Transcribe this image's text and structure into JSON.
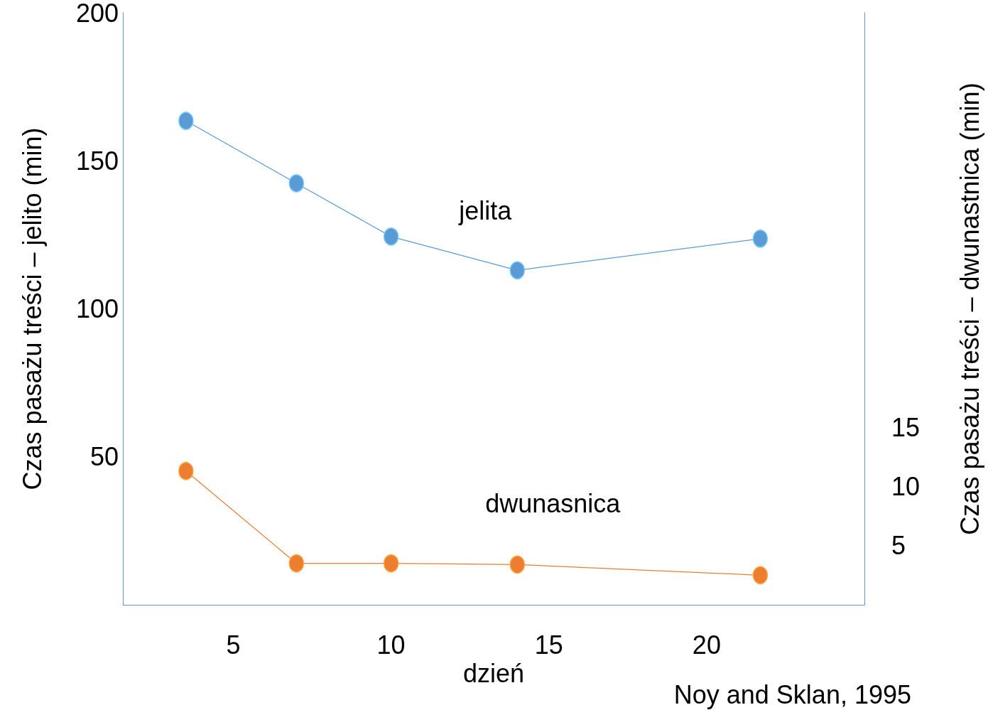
{
  "chart_data": {
    "type": "line",
    "xlabel": "dzień",
    "ylabel": "Czas pasażu treści – jelito (min)",
    "y2label": "Czas pasażu treści – dwunastnica (min)",
    "x": [
      3.5,
      7,
      10,
      14,
      21.7
    ],
    "series": [
      {
        "name": "jelita",
        "color": "#5b9bd5",
        "values": [
          163.5,
          142.4,
          124.4,
          113,
          123.7
        ]
      },
      {
        "name": "dwunasnica",
        "color": "#ed7d31",
        "axis": "y2",
        "values": [
          11.3,
          3.5,
          3.5,
          3.4,
          2.5
        ]
      }
    ],
    "xlim": [
      1.5,
      25
    ],
    "xticks": [
      5,
      10,
      15,
      20
    ],
    "ylim": [
      0,
      200
    ],
    "yticks": [
      50,
      100,
      150,
      200
    ],
    "y2lim": [
      0,
      50
    ],
    "y2ticks": [
      5,
      10,
      15
    ],
    "marker": "circle",
    "line_style": "solid",
    "grid": false,
    "annotations": [
      "Noy and Sklan, 1995"
    ]
  }
}
